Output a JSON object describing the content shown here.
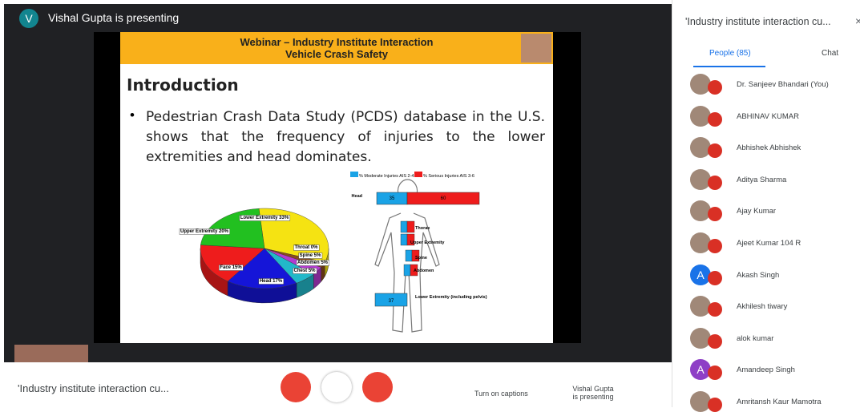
{
  "presenter": {
    "initial": "V",
    "label": "Vishal Gupta is presenting"
  },
  "slide": {
    "header": [
      "Webinar – Industry Institute Interaction",
      "Vehicle Crash Safety"
    ],
    "title": "Introduction",
    "bullet": "Pedestrian Crash Data Study (PCDS) database in the U.S. shows that the frequency of injuries to the lower extremities and head dominates.",
    "pie_labels": [
      "Lower Extremity 33%",
      "Upper Extremity 20%",
      "Face 15%",
      "Head 17%",
      "Throat 0%",
      "Spine 5%",
      "Abdomen 5%",
      "Chest 5%"
    ],
    "body_chart": {
      "legend": [
        "% Moderate Injuries AIS 2-4",
        "% Serious Injuries AIS 3-6"
      ],
      "regions": [
        "Head",
        "Thorax",
        "Upper Extremity",
        "Spine",
        "Abdomen",
        "Lower Extremity (including pelvis)"
      ],
      "head_values": [
        35,
        60
      ],
      "lower_value": 37
    }
  },
  "bottom_bar": {
    "meeting": "'Industry institute interaction cu...",
    "captions": "Turn on captions",
    "presenting": [
      "Vishal Gupta",
      "is presenting"
    ]
  },
  "side_panel": {
    "meeting": "'Industry institute interaction cu...",
    "tabs": [
      "People (85)",
      "Chat"
    ],
    "participants": [
      {
        "name": "Dr. Sanjeev Bhandari (You)"
      },
      {
        "name": "ABHINAV KUMAR"
      },
      {
        "name": "Abhishek Abhishek"
      },
      {
        "name": "Aditya Sharma"
      },
      {
        "name": "Ajay Kumar"
      },
      {
        "name": "Ajeet Kumar 104 R"
      },
      {
        "name": "Akash Singh",
        "initial": "A"
      },
      {
        "name": "Akhilesh tiwary"
      },
      {
        "name": "alok kumar"
      },
      {
        "name": "Amandeep Singh",
        "initial": "A"
      },
      {
        "name": "Amritansh Kaur Mamotra"
      }
    ]
  }
}
